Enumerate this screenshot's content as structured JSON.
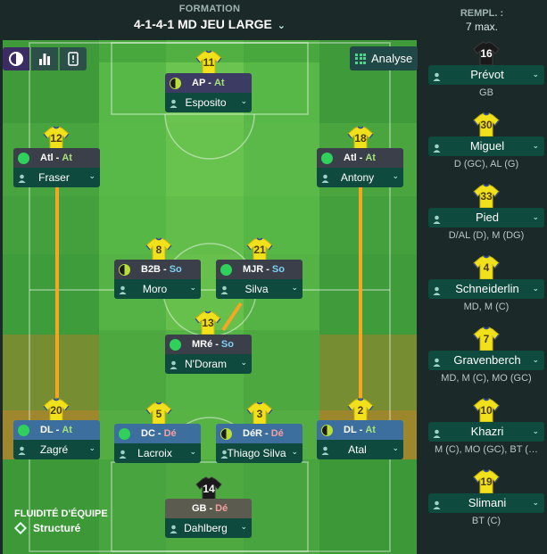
{
  "header": {
    "label": "FORMATION",
    "formation": "4-1-4-1 MD JEU LARGE"
  },
  "subs_header": {
    "title": "REMPL. :",
    "max": "7 max."
  },
  "toolbar": {
    "analyse_label": "Analyse"
  },
  "colors": {
    "attack": "#a6e27a",
    "support": "#7fd0f2",
    "defend": "#f2a0a0",
    "card_role_attack": "#3b3b63",
    "card_role_midfield": "#3a3f4a",
    "card_role_defence": "#3d6f9e",
    "card_role_gk": "#5b5b4f"
  },
  "players": [
    {
      "number": "11",
      "role": "AP",
      "duty": "At",
      "name": "Esposito",
      "dot": "half",
      "band": "attack"
    },
    {
      "number": "12",
      "role": "Atl",
      "duty": "At",
      "name": "Fraser",
      "dot": "full",
      "band": "mid"
    },
    {
      "number": "18",
      "role": "Atl",
      "duty": "At",
      "name": "Antony",
      "dot": "full",
      "band": "mid"
    },
    {
      "number": "8",
      "role": "B2B",
      "duty": "So",
      "name": "Moro",
      "dot": "half",
      "band": "mid"
    },
    {
      "number": "21",
      "role": "MJR",
      "duty": "So",
      "name": "Silva",
      "dot": "full",
      "band": "mid"
    },
    {
      "number": "13",
      "role": "MRé",
      "duty": "So",
      "name": "N'Doram",
      "dot": "full",
      "band": "mid"
    },
    {
      "number": "20",
      "role": "DL",
      "duty": "At",
      "name": "Zagré",
      "dot": "full",
      "band": "def"
    },
    {
      "number": "5",
      "role": "DC",
      "duty": "Dé",
      "name": "Lacroix",
      "dot": "full",
      "band": "def"
    },
    {
      "number": "3",
      "role": "DéR",
      "duty": "Dé",
      "name": "Thiago Silva",
      "dot": "half",
      "band": "def"
    },
    {
      "number": "2",
      "role": "DL",
      "duty": "At",
      "name": "Atal",
      "dot": "half",
      "band": "def"
    },
    {
      "number": "14",
      "role": "GB",
      "duty": "Dé",
      "name": "Dahlberg",
      "dot": "none",
      "band": "gk"
    }
  ],
  "substitutes": [
    {
      "number": "16",
      "name": "Prévot",
      "positions": "GB",
      "gk": true
    },
    {
      "number": "30",
      "name": "Miguel",
      "positions": "D (GC), AL (G)",
      "gk": false
    },
    {
      "number": "33",
      "name": "Pied",
      "positions": "D/AL (D), M (DG)",
      "gk": false
    },
    {
      "number": "4",
      "name": "Schneiderlin",
      "positions": "MD, M (C)",
      "gk": false
    },
    {
      "number": "7",
      "name": "Gravenberch",
      "positions": "MD, M (C), MO (GC)",
      "gk": false
    },
    {
      "number": "10",
      "name": "Khazri",
      "positions": "M (C), MO (GC), BT (…",
      "gk": false
    },
    {
      "number": "19",
      "name": "Slimani",
      "positions": "BT (C)",
      "gk": false
    }
  ],
  "fluidity": {
    "label": "FLUIDITÉ D'ÉQUIPE",
    "value": "Structuré"
  }
}
